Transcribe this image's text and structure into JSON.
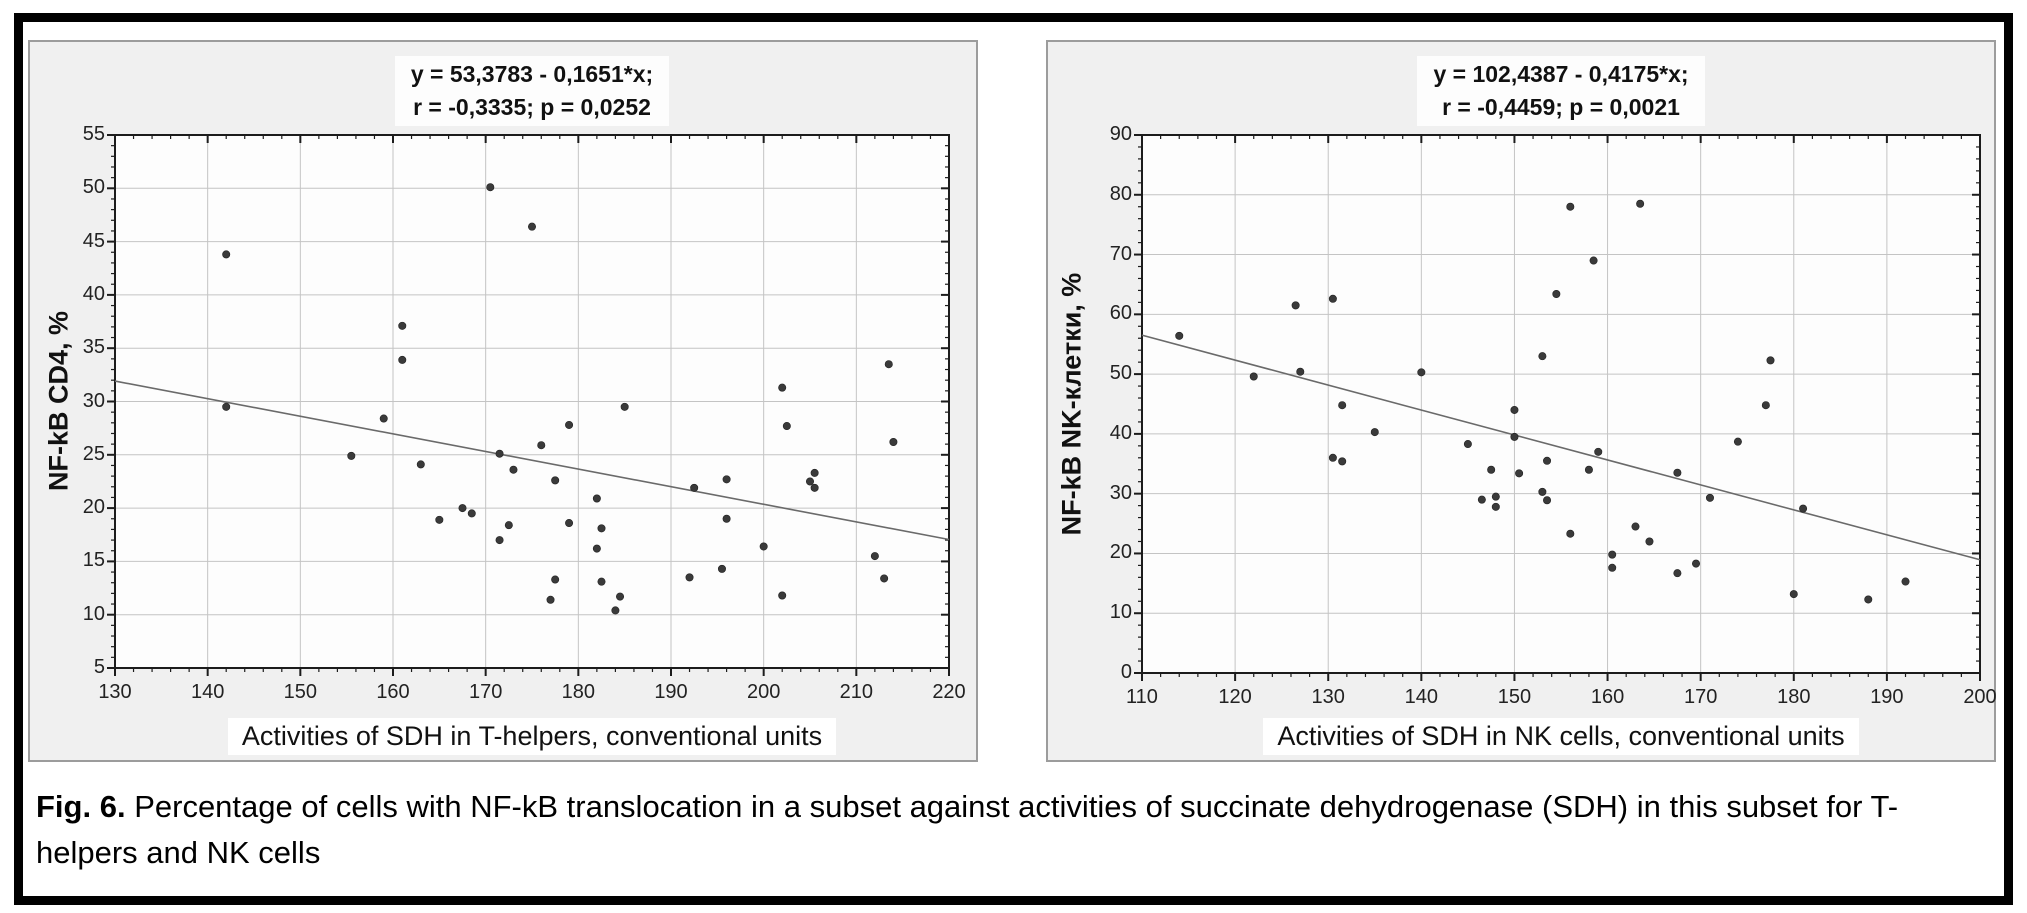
{
  "figure": {
    "caption": {
      "label": "Fig. 6.",
      "text": "Percentage of cells with NF-kB translocation in a subset against activities of succinate dehydrogenase (SDH) in this subset for T-helpers and NK cells"
    }
  },
  "colors": {
    "page_bg": "#ffffff",
    "outer_frame": "#000000",
    "panel_bg": "#f0f0f0",
    "panel_border": "#9c9c9c",
    "plot_bg": "#fdfdfd",
    "grid": "#c4c4c4",
    "axis": "#1c1c1c",
    "point": "#3a3a3a",
    "trend": "#6a6a6a",
    "text": "#1a1a1a"
  },
  "chart_data": [
    {
      "type": "scatter",
      "title_line1": "y = 53,3783 - 0,1651*x;",
      "title_line2": "r = -0,3335; p = 0,0252",
      "xlabel": "Activities of SDH in T-helpers, conventional units",
      "ylabel": "NF-kB CD4, %",
      "xlim": [
        130,
        220
      ],
      "x_major": 10,
      "x_minor": 2,
      "ylim": [
        5,
        55
      ],
      "y_major": 5,
      "y_minor": 1,
      "grid": true,
      "legend": "none",
      "regression": {
        "intercept": 53.3783,
        "slope": -0.1651,
        "r": "-0,3335",
        "p": "0,0252"
      },
      "points": [
        [
          142,
          43.8
        ],
        [
          170.5,
          50.1
        ],
        [
          175,
          46.4
        ],
        [
          161,
          37.1
        ],
        [
          161,
          33.9
        ],
        [
          142,
          29.5
        ],
        [
          159,
          28.4
        ],
        [
          155.5,
          24.9
        ],
        [
          163,
          24.1
        ],
        [
          171.5,
          25.1
        ],
        [
          173,
          23.6
        ],
        [
          176,
          25.9
        ],
        [
          167.5,
          20
        ],
        [
          168.5,
          19.5
        ],
        [
          165,
          18.9
        ],
        [
          172.5,
          18.4
        ],
        [
          171.5,
          17
        ],
        [
          177.5,
          22.6
        ],
        [
          179,
          27.8
        ],
        [
          182,
          20.9
        ],
        [
          179,
          18.6
        ],
        [
          182.5,
          18.1
        ],
        [
          182,
          16.2
        ],
        [
          177.5,
          13.3
        ],
        [
          177,
          11.4
        ],
        [
          182.5,
          13.1
        ],
        [
          184.5,
          11.7
        ],
        [
          184,
          10.4
        ],
        [
          185,
          29.5
        ],
        [
          192.5,
          21.9
        ],
        [
          196,
          22.7
        ],
        [
          196,
          19
        ],
        [
          192,
          13.5
        ],
        [
          195.5,
          14.3
        ],
        [
          200,
          16.4
        ],
        [
          202,
          31.3
        ],
        [
          202.5,
          27.7
        ],
        [
          202,
          11.8
        ],
        [
          205.5,
          23.3
        ],
        [
          205,
          22.5
        ],
        [
          205.5,
          21.9
        ],
        [
          212,
          15.5
        ],
        [
          213,
          13.4
        ],
        [
          213.5,
          33.5
        ],
        [
          214,
          26.2
        ]
      ]
    },
    {
      "type": "scatter",
      "title_line1": "y = 102,4387 - 0,4175*x;",
      "title_line2": "r = -0,4459; p = 0,0021",
      "xlabel": "Activities of SDH in NK cells, conventional units",
      "ylabel": "NF-kB NK-клетки, %",
      "xlim": [
        110,
        200
      ],
      "x_major": 10,
      "x_minor": 2,
      "ylim": [
        0,
        90
      ],
      "y_major": 10,
      "y_minor": 2,
      "grid": true,
      "legend": "none",
      "regression": {
        "intercept": 102.4387,
        "slope": -0.4175,
        "r": "-0,4459",
        "p": "0,0021"
      },
      "points": [
        [
          114,
          56.4
        ],
        [
          122,
          49.6
        ],
        [
          126.5,
          61.5
        ],
        [
          130.5,
          62.6
        ],
        [
          127,
          50.4
        ],
        [
          131.5,
          44.8
        ],
        [
          135,
          40.3
        ],
        [
          130.5,
          36
        ],
        [
          131.5,
          35.4
        ],
        [
          140,
          50.3
        ],
        [
          145,
          38.3
        ],
        [
          147.5,
          34
        ],
        [
          146.5,
          29
        ],
        [
          148,
          29.5
        ],
        [
          148,
          27.8
        ],
        [
          150,
          44
        ],
        [
          150,
          39.5
        ],
        [
          150.5,
          33.4
        ],
        [
          153,
          30.3
        ],
        [
          153.5,
          28.9
        ],
        [
          153.5,
          35.5
        ],
        [
          156,
          78
        ],
        [
          163.5,
          78.5
        ],
        [
          158.5,
          69
        ],
        [
          154.5,
          63.4
        ],
        [
          153,
          53
        ],
        [
          156,
          23.3
        ],
        [
          158,
          34
        ],
        [
          159,
          37
        ],
        [
          160.5,
          19.8
        ],
        [
          160.5,
          17.6
        ],
        [
          163,
          24.5
        ],
        [
          164.5,
          22
        ],
        [
          167.5,
          33.5
        ],
        [
          167.5,
          16.7
        ],
        [
          169.5,
          18.3
        ],
        [
          171,
          29.3
        ],
        [
          174,
          38.7
        ],
        [
          177.5,
          52.3
        ],
        [
          177,
          44.8
        ],
        [
          181,
          27.5
        ],
        [
          180,
          13.2
        ],
        [
          188,
          12.3
        ],
        [
          192,
          15.3
        ]
      ]
    }
  ]
}
